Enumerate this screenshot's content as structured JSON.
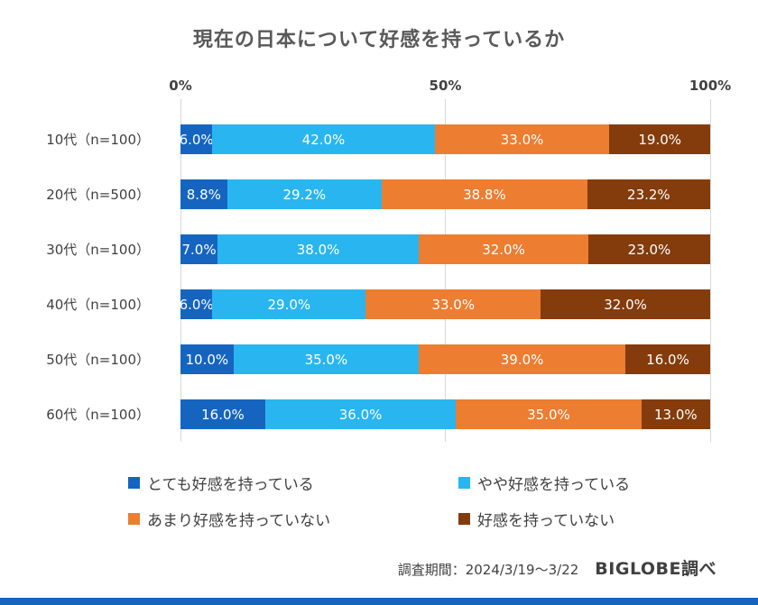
{
  "title": "現在の日本について好感を持っているか",
  "chart_data": {
    "type": "bar",
    "stacked": true,
    "orientation": "horizontal",
    "title": "現在の日本について好感を持っているか",
    "categories": [
      "10代（n=100）",
      "20代（n=500）",
      "30代（n=100）",
      "40代（n=100）",
      "50代（n=100）",
      "60代（n=100）"
    ],
    "series": [
      {
        "name": "とても好感を持っている",
        "color": "#1565c0",
        "values": [
          6.0,
          8.8,
          7.0,
          6.0,
          10.0,
          16.0
        ]
      },
      {
        "name": "やや好感を持っている",
        "color": "#29b6f0",
        "values": [
          42.0,
          29.2,
          38.0,
          29.0,
          35.0,
          36.0
        ]
      },
      {
        "name": "あまり好感を持っていない",
        "color": "#ed7d31",
        "values": [
          33.0,
          38.8,
          32.0,
          33.0,
          39.0,
          35.0
        ]
      },
      {
        "name": "好感を持っていない",
        "color": "#843c0c",
        "values": [
          19.0,
          23.2,
          23.0,
          32.0,
          16.0,
          13.0
        ]
      }
    ],
    "x_axis_ticks": [
      "0%",
      "50%",
      "100%"
    ],
    "xlim": [
      0,
      100
    ],
    "value_suffix": "%",
    "grid": true,
    "legend_position": "bottom"
  },
  "footer": {
    "survey_period": "調査期間：2024/3/19～3/22",
    "source": "BIGLOBE調べ"
  },
  "colors": {
    "accent_bar": "#1565c0",
    "gridline": "#d9d9d9",
    "text": "#404040",
    "title_text": "#595959"
  }
}
